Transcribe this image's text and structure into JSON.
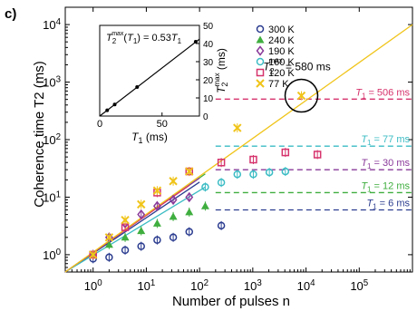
{
  "panel_label": "c)",
  "chart_data": {
    "type": "scatter",
    "title": "",
    "xlabel": "Number of pulses n",
    "ylabel": "Coherence time T2 (ms)",
    "xscale": "log",
    "yscale": "log",
    "xlim": [
      0.3,
      1000000
    ],
    "ylim": [
      0.5,
      20000
    ],
    "x_ticks": [
      {
        "value": 1,
        "label": "10^0"
      },
      {
        "value": 10,
        "label": "10^1"
      },
      {
        "value": 100,
        "label": "10^2"
      },
      {
        "value": 1000,
        "label": "10^3"
      },
      {
        "value": 10000,
        "label": "10^4"
      },
      {
        "value": 100000,
        "label": "10^5"
      }
    ],
    "y_ticks": [
      {
        "value": 1,
        "label": "10^0"
      },
      {
        "value": 10,
        "label": "10^1"
      },
      {
        "value": 100,
        "label": "10^2"
      },
      {
        "value": 1000,
        "label": "10^3"
      },
      {
        "value": 10000,
        "label": "10^4"
      }
    ],
    "legend_position": "top-right",
    "series": [
      {
        "name": "300 K",
        "color": "#2b3c8f",
        "marker": "circle",
        "x": [
          1,
          2,
          4,
          8,
          16,
          32,
          64,
          256
        ],
        "y": [
          0.85,
          0.9,
          1.2,
          1.4,
          1.8,
          2.0,
          2.5,
          3.2
        ],
        "fit_to": 100
      },
      {
        "name": "240 K",
        "color": "#3fae3f",
        "marker": "triangle",
        "x": [
          1,
          2,
          4,
          8,
          16,
          32,
          64,
          128
        ],
        "y": [
          1.0,
          1.5,
          2.0,
          2.6,
          3.5,
          4.6,
          5.5,
          7.0
        ],
        "fit_to": 128
      },
      {
        "name": "190 K",
        "color": "#8a3a9a",
        "marker": "diamond",
        "x": [
          1,
          2,
          4,
          8,
          16,
          32,
          64
        ],
        "y": [
          1.0,
          2.0,
          3.5,
          5.0,
          7.0,
          9.0,
          10.0
        ],
        "fit_to": 100
      },
      {
        "name": "160 K",
        "color": "#3bbcc4",
        "marker": "circle",
        "x": [
          128,
          256,
          512,
          1024,
          2048,
          4096
        ],
        "y": [
          15,
          18,
          25,
          25,
          27,
          28
        ],
        "fit_to": 128
      },
      {
        "name": "120 K",
        "color": "#d6336c",
        "marker": "square",
        "x": [
          1,
          4,
          16,
          64,
          256,
          1024,
          4096,
          16384
        ],
        "y": [
          1.0,
          3.0,
          12,
          28,
          40,
          45,
          60,
          55
        ],
        "fit_to": 64
      },
      {
        "name": "77 K",
        "color": "#f0c419",
        "marker": "x",
        "x": [
          1,
          2,
          4,
          8,
          16,
          32,
          64,
          512,
          8192
        ],
        "y": [
          1.0,
          2.0,
          4.0,
          7.5,
          13,
          19,
          28,
          160,
          580
        ],
        "fit_to": 1000000
      }
    ],
    "t1_lines": [
      {
        "label": "T1 = 506 ms",
        "y": 506,
        "color": "#d6336c"
      },
      {
        "label": "T1 = 77 ms",
        "y": 77,
        "color": "#3bbcc4"
      },
      {
        "label": "T1 = 30 ms",
        "y": 30,
        "color": "#8a3a9a"
      },
      {
        "label": "T1 = 12 ms",
        "y": 12,
        "color": "#3fae3f"
      },
      {
        "label": "T1 = 6 ms",
        "y": 6,
        "color": "#2b3c8f"
      }
    ],
    "annotation": {
      "label": "T2max = 580 ms",
      "x": 8192,
      "y": 580
    },
    "inset": {
      "type": "line",
      "title": "T2max(T1) = 0.53 T1",
      "xlabel": "T1 (ms)",
      "ylabel": "T2max (ms)",
      "xlim": [
        0,
        80
      ],
      "ylim": [
        0,
        50
      ],
      "x_ticks": [
        0,
        50
      ],
      "y_ticks": [
        0,
        10,
        20,
        30,
        40,
        50
      ],
      "points": {
        "x": [
          6,
          12,
          30,
          77
        ],
        "y": [
          3.2,
          6.4,
          16,
          41
        ]
      },
      "fit_slope": 0.53
    }
  }
}
